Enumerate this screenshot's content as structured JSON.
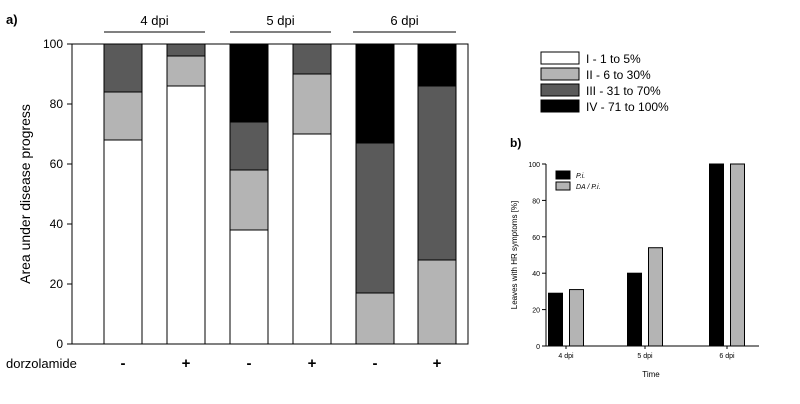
{
  "chart_data": [
    {
      "panel_label": "a)",
      "type": "bar",
      "stacked": true,
      "title": "",
      "xlabel": "",
      "ylabel": "Area under disease progress",
      "ylim": [
        0,
        100
      ],
      "yticks": [
        "0",
        "20",
        "40",
        "60",
        "80",
        "100"
      ],
      "row_label": "dorzolamide",
      "groups": [
        {
          "label": "4 dpi",
          "categories": [
            "-",
            "+"
          ]
        },
        {
          "label": "5 dpi",
          "categories": [
            "-",
            "+"
          ]
        },
        {
          "label": "6 dpi",
          "categories": [
            "-",
            "+"
          ]
        }
      ],
      "categories": [
        "-",
        "+",
        "-",
        "+",
        "-",
        "+"
      ],
      "series": [
        {
          "name": "I - 1 to 5%",
          "color": "#ffffff",
          "values": [
            68,
            86,
            38,
            70,
            0,
            0
          ]
        },
        {
          "name": "II - 6 to 30%",
          "color": "#b4b4b4",
          "values": [
            16,
            10,
            20,
            20,
            17,
            28
          ]
        },
        {
          "name": "III - 31 to 70%",
          "color": "#5a5a5a",
          "values": [
            16,
            4,
            16,
            10,
            50,
            58
          ]
        },
        {
          "name": "IV - 71 to 100%",
          "color": "#000000",
          "values": [
            0,
            0,
            26,
            0,
            33,
            14
          ]
        }
      ],
      "legend_position": "top-right"
    },
    {
      "panel_label": "b)",
      "type": "bar",
      "title": "",
      "xlabel": "Time",
      "ylabel": "Leaves with HR symptoms [%]",
      "ylim": [
        0,
        100
      ],
      "yticks": [
        "0",
        "20",
        "40",
        "60",
        "80",
        "100"
      ],
      "categories": [
        "4 dpi",
        "5 dpi",
        "6 dpi"
      ],
      "series": [
        {
          "name": "P.i.",
          "color": "#000000",
          "values": [
            29,
            40,
            100
          ]
        },
        {
          "name": "DA / P.i.",
          "color": "#b4b4b4",
          "values": [
            31,
            54,
            100
          ]
        }
      ],
      "legend_position": "top-left"
    }
  ]
}
